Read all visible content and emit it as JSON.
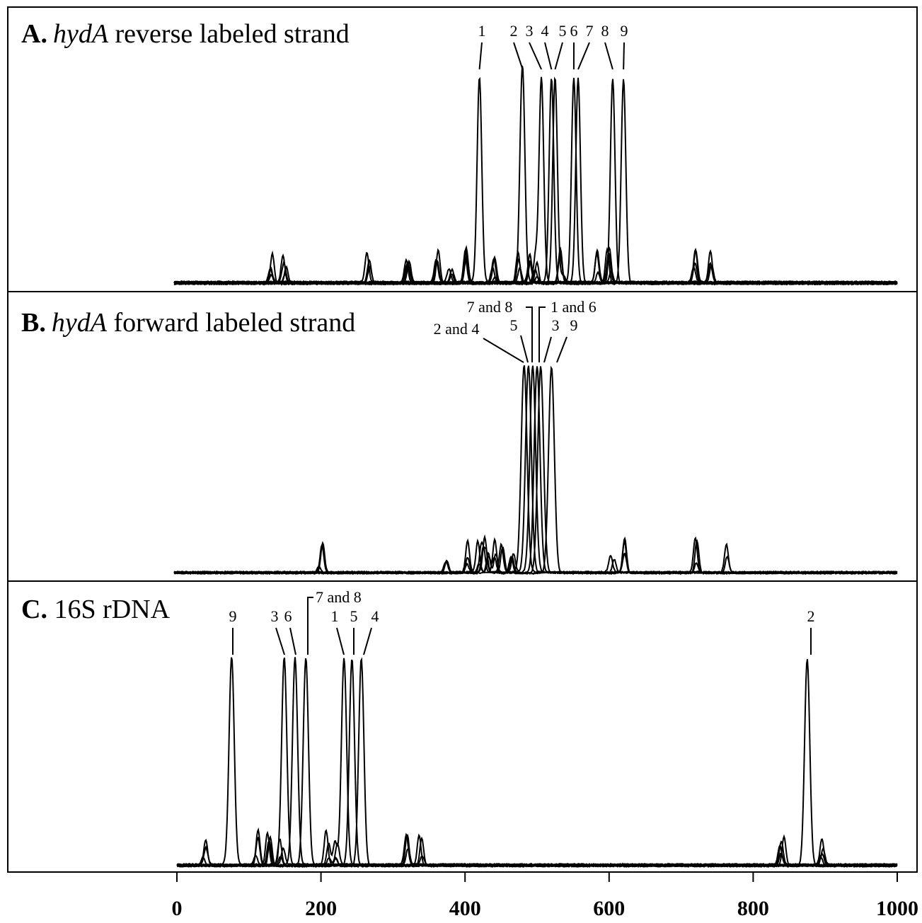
{
  "chart_data": [
    {
      "type": "line",
      "panel": "A",
      "title_letter": "A.",
      "title_gene": "hydA",
      "title_rest": " reverse labeled strand",
      "xlim": [
        0,
        1000
      ],
      "grid": false,
      "peaks": [
        {
          "label": "1",
          "x": 420
        },
        {
          "label": "2",
          "x": 480
        },
        {
          "label": "3",
          "x": 506
        },
        {
          "label": "4",
          "x": 520
        },
        {
          "label": "5",
          "x": 525
        },
        {
          "label": "6",
          "x": 551
        },
        {
          "label": "7",
          "x": 557
        },
        {
          "label": "8",
          "x": 605
        },
        {
          "label": "9",
          "x": 620
        }
      ],
      "minor_peaks": [
        360,
        400,
        320,
        380,
        440,
        475,
        490,
        498,
        535,
        586,
        600,
        720,
        740,
        130,
        150,
        265
      ]
    },
    {
      "type": "line",
      "panel": "B",
      "title_letter": "B.",
      "title_gene": "hydA",
      "title_rest": " forward labeled strand",
      "xlim": [
        0,
        1000
      ],
      "grid": false,
      "peaks": [
        {
          "label": "2 and 4",
          "x": 482
        },
        {
          "label": "5",
          "x": 488
        },
        {
          "label": "7 and 8",
          "x": 494
        },
        {
          "label": "1 and 6",
          "x": 500
        },
        {
          "label": "3",
          "x": 505
        },
        {
          "label": "9",
          "x": 520
        }
      ],
      "minor_peaks": [
        375,
        405,
        420,
        425,
        432,
        440,
        452,
        465,
        200,
        605,
        620,
        720,
        765
      ]
    },
    {
      "type": "line",
      "panel": "C",
      "title_letter": "C.",
      "title_gene": "",
      "title_rest": " 16S rDNA",
      "xlim": [
        0,
        1000
      ],
      "grid": false,
      "x_ticks": [
        "0",
        "200",
        "400",
        "600",
        "800",
        "1000"
      ],
      "x_tick_values": [
        0,
        200,
        400,
        600,
        800,
        1000
      ],
      "peaks": [
        {
          "label": "9",
          "x": 76
        },
        {
          "label": "3",
          "x": 149
        },
        {
          "label": "6",
          "x": 164
        },
        {
          "label": "7 and 8",
          "x": 179
        },
        {
          "label": "1",
          "x": 232
        },
        {
          "label": "5",
          "x": 243
        },
        {
          "label": "4",
          "x": 256
        },
        {
          "label": "2",
          "x": 875
        }
      ],
      "minor_peaks": [
        38,
        110,
        128,
        145,
        210,
        222,
        320,
        338,
        840,
        895
      ]
    }
  ]
}
